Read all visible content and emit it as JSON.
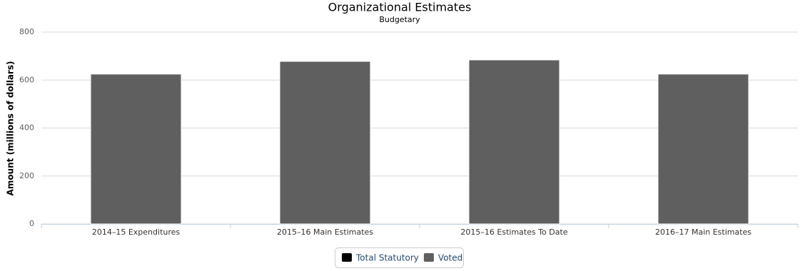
{
  "chart_data": {
    "type": "bar",
    "title": "Organizational Estimates",
    "subtitle": "Budgetary",
    "y_label": "Amount (millions of dollars)",
    "categories": [
      "2014–15 Expenditures",
      "2015–16 Main Estimates",
      "2015–16 Estimates To Date",
      "2016–17 Main Estimates"
    ],
    "series": [
      {
        "name": "Total Statutory",
        "color": "#000000",
        "values": [
          0,
          0,
          0,
          0
        ]
      },
      {
        "name": "Voted",
        "color": "#5f5f5f",
        "values": [
          625,
          678,
          684,
          625
        ]
      }
    ],
    "stacked": true,
    "ylim": [
      0,
      800
    ],
    "yticks": [
      0,
      200,
      400,
      600,
      800
    ],
    "grid": true
  }
}
